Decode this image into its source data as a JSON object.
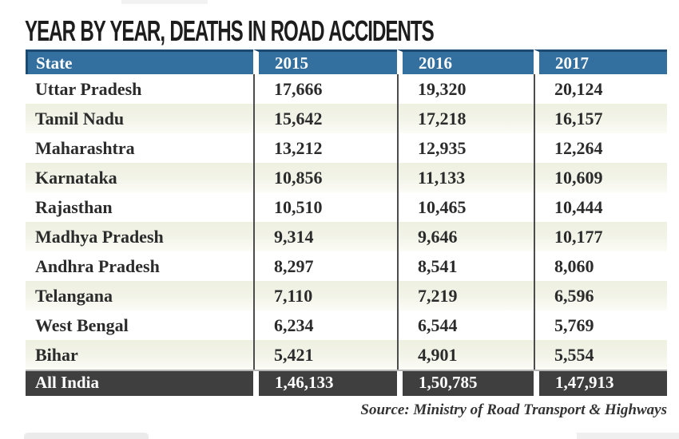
{
  "title": "YEAR BY YEAR, DEATHS IN ROAD ACCIDENTS",
  "source": "Source: Ministry of Road Transport & Highways",
  "colors": {
    "header_blue": "#34709f",
    "header_border_navy": "#1d4a70",
    "row_cream": "#eef0e0",
    "total_row_dark": "#3f3f3f",
    "separator_line": "#4c4c4c",
    "body_text": "#2b2b2b"
  },
  "table": {
    "columns": [
      "State",
      "2015",
      "2016",
      "2017"
    ],
    "rows": [
      {
        "state": "Uttar Pradesh",
        "values": [
          "17,666",
          "19,320",
          "20,124"
        ]
      },
      {
        "state": "Tamil Nadu",
        "values": [
          "15,642",
          "17,218",
          "16,157"
        ]
      },
      {
        "state": "Maharashtra",
        "values": [
          "13,212",
          "12,935",
          "12,264"
        ]
      },
      {
        "state": "Karnataka",
        "values": [
          "10,856",
          "11,133",
          "10,609"
        ]
      },
      {
        "state": "Rajasthan",
        "values": [
          "10,510",
          "10,465",
          "10,444"
        ]
      },
      {
        "state": "Madhya Pradesh",
        "values": [
          "9,314",
          "9,646",
          "10,177"
        ]
      },
      {
        "state": "Andhra Pradesh",
        "values": [
          "8,297",
          "8,541",
          "8,060"
        ]
      },
      {
        "state": "Telangana",
        "values": [
          "7,110",
          "7,219",
          "6,596"
        ]
      },
      {
        "state": "West Bengal",
        "values": [
          "6,234",
          "6,544",
          "5,769"
        ]
      },
      {
        "state": "Bihar",
        "values": [
          "5,421",
          "4,901",
          "5,554"
        ]
      }
    ],
    "total_row": {
      "state": "All India",
      "values": [
        "1,46,133",
        "1,50,785",
        "1,47,913"
      ]
    }
  },
  "chart_data": {
    "type": "table",
    "title": "YEAR BY YEAR, DEATHS IN ROAD ACCIDENTS",
    "columns": [
      "State",
      "2015",
      "2016",
      "2017"
    ],
    "x": [
      2015,
      2016,
      2017
    ],
    "series": [
      {
        "name": "Uttar Pradesh",
        "values": [
          17666,
          19320,
          20124
        ]
      },
      {
        "name": "Tamil Nadu",
        "values": [
          15642,
          17218,
          16157
        ]
      },
      {
        "name": "Maharashtra",
        "values": [
          13212,
          12935,
          12264
        ]
      },
      {
        "name": "Karnataka",
        "values": [
          10856,
          11133,
          10609
        ]
      },
      {
        "name": "Rajasthan",
        "values": [
          10510,
          10465,
          10444
        ]
      },
      {
        "name": "Madhya Pradesh",
        "values": [
          9314,
          9646,
          10177
        ]
      },
      {
        "name": "Andhra Pradesh",
        "values": [
          8297,
          8541,
          8060
        ]
      },
      {
        "name": "Telangana",
        "values": [
          7110,
          7219,
          6596
        ]
      },
      {
        "name": "West Bengal",
        "values": [
          6234,
          6544,
          5769
        ]
      },
      {
        "name": "Bihar",
        "values": [
          5421,
          4901,
          5554
        ]
      },
      {
        "name": "All India",
        "values": [
          146133,
          150785,
          147913
        ]
      }
    ],
    "annotations": [
      "Source: Ministry of Road Transport & Highways"
    ]
  }
}
